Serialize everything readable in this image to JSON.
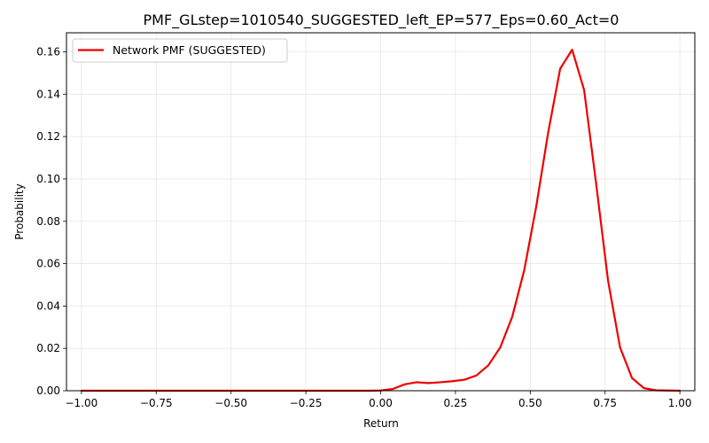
{
  "chart_data": {
    "type": "line",
    "title": "PMF_GLstep=1010540_SUGGESTED_left_EP=577_Eps=0.60_Act=0",
    "xlabel": "Return",
    "ylabel": "Probability",
    "xlim": [
      -1.05,
      1.05
    ],
    "ylim": [
      0,
      0.169
    ],
    "x_ticks": [
      -1.0,
      -0.75,
      -0.5,
      -0.25,
      0.0,
      0.25,
      0.5,
      0.75,
      1.0
    ],
    "x_tick_labels": [
      "−1.00",
      "−0.75",
      "−0.50",
      "−0.25",
      "0.00",
      "0.25",
      "0.50",
      "0.75",
      "1.00"
    ],
    "y_ticks": [
      0.0,
      0.02,
      0.04,
      0.06,
      0.08,
      0.1,
      0.12,
      0.14,
      0.16
    ],
    "y_tick_labels": [
      "0.00",
      "0.02",
      "0.04",
      "0.06",
      "0.08",
      "0.10",
      "0.12",
      "0.14",
      "0.16"
    ],
    "grid": true,
    "legend_position": "top-left",
    "series": [
      {
        "name": "Network PMF (SUGGESTED)",
        "color": "#ee0000",
        "x": [
          -1.0,
          -0.96,
          -0.92,
          -0.88,
          -0.84,
          -0.8,
          -0.76,
          -0.72,
          -0.68,
          -0.64,
          -0.6,
          -0.56,
          -0.52,
          -0.48,
          -0.44,
          -0.4,
          -0.36,
          -0.32,
          -0.28,
          -0.24,
          -0.2,
          -0.16,
          -0.12,
          -0.08,
          -0.04,
          0.0,
          0.04,
          0.08,
          0.12,
          0.16,
          0.2,
          0.24,
          0.28,
          0.32,
          0.36,
          0.4,
          0.44,
          0.48,
          0.52,
          0.56,
          0.6,
          0.64,
          0.68,
          0.72,
          0.76,
          0.8,
          0.84,
          0.88,
          0.92,
          0.96,
          1.0
        ],
        "y": [
          0,
          0,
          0,
          0,
          0,
          0,
          0,
          0,
          0,
          0,
          0,
          0,
          0,
          0,
          0,
          0,
          0,
          0,
          0,
          0,
          0,
          0,
          0,
          0,
          0,
          0.0001,
          0.0008,
          0.003,
          0.004,
          0.0036,
          0.004,
          0.0045,
          0.0052,
          0.0072,
          0.012,
          0.0205,
          0.035,
          0.057,
          0.087,
          0.122,
          0.152,
          0.161,
          0.142,
          0.098,
          0.052,
          0.0205,
          0.006,
          0.0012,
          0.0002,
          0.0001,
          0
        ]
      }
    ]
  }
}
